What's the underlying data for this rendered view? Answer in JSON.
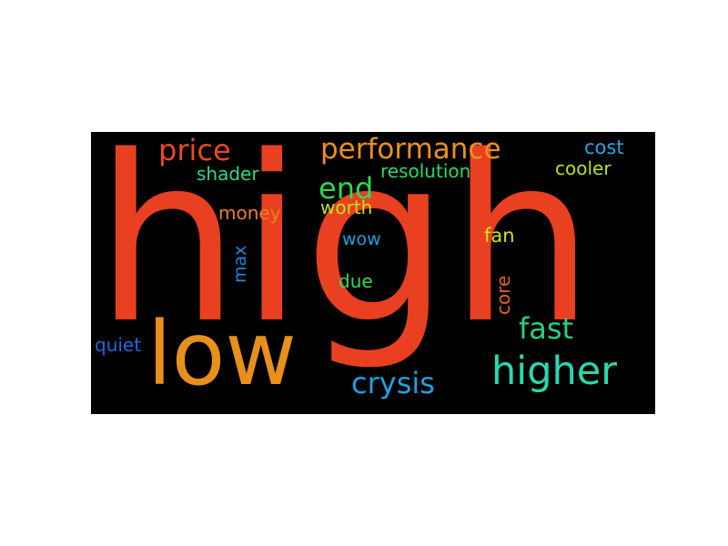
{
  "words": [
    {
      "key": "high",
      "text": "high",
      "color": "#e84020"
    },
    {
      "key": "low",
      "text": "low",
      "color": "#e8901c"
    },
    {
      "key": "higher",
      "text": "higher",
      "color": "#28d8b0"
    },
    {
      "key": "performance",
      "text": "performance",
      "color": "#e89020"
    },
    {
      "key": "price",
      "text": "price",
      "color": "#e84a20"
    },
    {
      "key": "end",
      "text": "end",
      "color": "#30d850"
    },
    {
      "key": "fast",
      "text": "fast",
      "color": "#28d080"
    },
    {
      "key": "crysis",
      "text": "crysis",
      "color": "#20a0e0"
    },
    {
      "key": "shader",
      "text": "shader",
      "color": "#28d890"
    },
    {
      "key": "resolution",
      "text": "resolution",
      "color": "#30d868"
    },
    {
      "key": "cost",
      "text": "cost",
      "color": "#20a8e8"
    },
    {
      "key": "cooler",
      "text": "cooler",
      "color": "#b8e020"
    },
    {
      "key": "money",
      "text": "money",
      "color": "#e88020"
    },
    {
      "key": "worth",
      "text": "worth",
      "color": "#c0e020"
    },
    {
      "key": "fan",
      "text": "fan",
      "color": "#d0e020"
    },
    {
      "key": "wow",
      "text": "wow",
      "color": "#20a0d8"
    },
    {
      "key": "max",
      "text": "max",
      "color": "#2088e0"
    },
    {
      "key": "due",
      "text": "due",
      "color": "#30d858"
    },
    {
      "key": "core",
      "text": "core",
      "color": "#e86020"
    },
    {
      "key": "quiet",
      "text": "quiet",
      "color": "#2068e0"
    }
  ]
}
